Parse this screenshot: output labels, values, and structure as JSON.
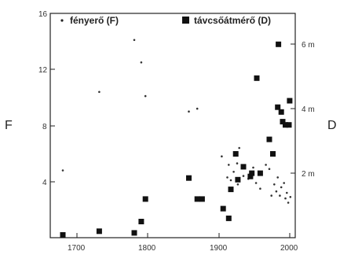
{
  "chart_data": {
    "type": "scatter",
    "title": "",
    "left_axis": {
      "label": "F",
      "ylim": [
        0,
        16
      ],
      "ticks": [
        "16",
        "12",
        "8",
        "4"
      ]
    },
    "right_axis": {
      "label": "D",
      "ylim": [
        0,
        6.96
      ],
      "ticks": [
        "6 m",
        "4 m",
        "2 m"
      ]
    },
    "x_axis": {
      "label": "",
      "xlim": [
        1650,
        2000
      ],
      "ticks": [
        "1700",
        "1800",
        "1900",
        "2000"
      ]
    },
    "legend": {
      "position": "top",
      "entries": [
        "fényerő (F)",
        "távcsőátmérő (D)"
      ]
    },
    "series": [
      {
        "name": "fényerő (F)",
        "marker": "small-dot",
        "axis": "left",
        "points": [
          [
            1668,
            4.8
          ],
          [
            1720,
            10.4
          ],
          [
            1770,
            14.1
          ],
          [
            1780,
            12.5
          ],
          [
            1786,
            10.1
          ],
          [
            1848,
            9.0
          ],
          [
            1860,
            9.2
          ],
          [
            1895,
            5.8
          ],
          [
            1903,
            4.3
          ],
          [
            1905,
            5.2
          ],
          [
            1908,
            4.1
          ],
          [
            1912,
            4.7
          ],
          [
            1917,
            5.3
          ],
          [
            1918,
            3.8
          ],
          [
            1920,
            6.4
          ],
          [
            1926,
            4.4
          ],
          [
            1933,
            4.2
          ],
          [
            1940,
            5.0
          ],
          [
            1944,
            3.9
          ],
          [
            1950,
            3.5
          ],
          [
            1958,
            5.2
          ],
          [
            1963,
            4.9
          ],
          [
            1966,
            3.0
          ],
          [
            1970,
            3.8
          ],
          [
            1973,
            3.3
          ],
          [
            1975,
            4.3
          ],
          [
            1978,
            3.0
          ],
          [
            1980,
            3.6
          ],
          [
            1984,
            3.9
          ],
          [
            1986,
            2.8
          ],
          [
            1988,
            3.2
          ],
          [
            1990,
            2.5
          ],
          [
            1993,
            2.9
          ]
        ]
      },
      {
        "name": "távcsőátmérő (D)",
        "marker": "square",
        "axis": "right",
        "points": [
          [
            1668,
            0.0
          ],
          [
            1720,
            0.2
          ],
          [
            1770,
            0.15
          ],
          [
            1780,
            0.5
          ],
          [
            1786,
            1.2
          ],
          [
            1848,
            1.85
          ],
          [
            1860,
            1.2
          ],
          [
            1867,
            1.2
          ],
          [
            1897,
            0.9
          ],
          [
            1905,
            0.6
          ],
          [
            1908,
            1.5
          ],
          [
            1915,
            2.6
          ],
          [
            1918,
            1.8
          ],
          [
            1926,
            2.2
          ],
          [
            1936,
            1.9
          ],
          [
            1938,
            2.0
          ],
          [
            1945,
            4.95
          ],
          [
            1950,
            2.0
          ],
          [
            1963,
            3.05
          ],
          [
            1968,
            2.6
          ],
          [
            1975,
            4.05
          ],
          [
            1976,
            6.0
          ],
          [
            1980,
            3.9
          ],
          [
            1982,
            3.6
          ],
          [
            1986,
            3.5
          ],
          [
            1991,
            3.5
          ],
          [
            1992,
            4.25
          ]
        ]
      }
    ]
  }
}
